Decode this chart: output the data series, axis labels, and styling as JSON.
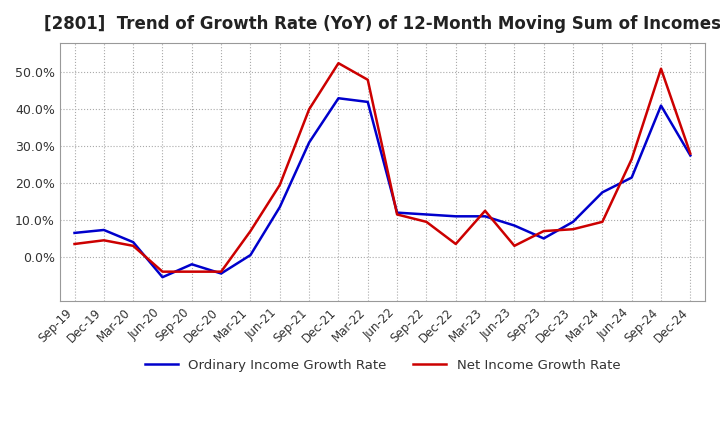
{
  "title": "[2801]  Trend of Growth Rate (YoY) of 12-Month Moving Sum of Incomes",
  "title_fontsize": 12,
  "background_color": "#ffffff",
  "plot_bg_color": "#ffffff",
  "grid_color": "#aaaaaa",
  "ordinary_color": "#0000cc",
  "net_color": "#cc0000",
  "ylim": [
    -0.12,
    0.58
  ],
  "yticks": [
    0.0,
    0.1,
    0.2,
    0.3,
    0.4,
    0.5
  ],
  "dates": [
    "Sep-19",
    "Dec-19",
    "Mar-20",
    "Jun-20",
    "Sep-20",
    "Dec-20",
    "Mar-21",
    "Jun-21",
    "Sep-21",
    "Dec-21",
    "Mar-22",
    "Jun-22",
    "Sep-22",
    "Dec-22",
    "Mar-23",
    "Jun-23",
    "Sep-23",
    "Dec-23",
    "Mar-24",
    "Jun-24",
    "Sep-24",
    "Dec-24"
  ],
  "ordinary_income": [
    0.065,
    0.073,
    0.04,
    -0.055,
    -0.02,
    -0.045,
    0.005,
    0.135,
    0.31,
    0.43,
    0.42,
    0.12,
    0.115,
    0.11,
    0.11,
    0.085,
    0.05,
    0.095,
    0.175,
    0.215,
    0.41,
    0.275
  ],
  "net_income": [
    0.035,
    0.045,
    0.03,
    -0.04,
    -0.04,
    -0.04,
    0.07,
    0.195,
    0.4,
    0.525,
    0.48,
    0.115,
    0.095,
    0.035,
    0.125,
    0.03,
    0.07,
    0.075,
    0.095,
    0.265,
    0.51,
    0.28
  ],
  "legend_ordinary": "Ordinary Income Growth Rate",
  "legend_net": "Net Income Growth Rate"
}
